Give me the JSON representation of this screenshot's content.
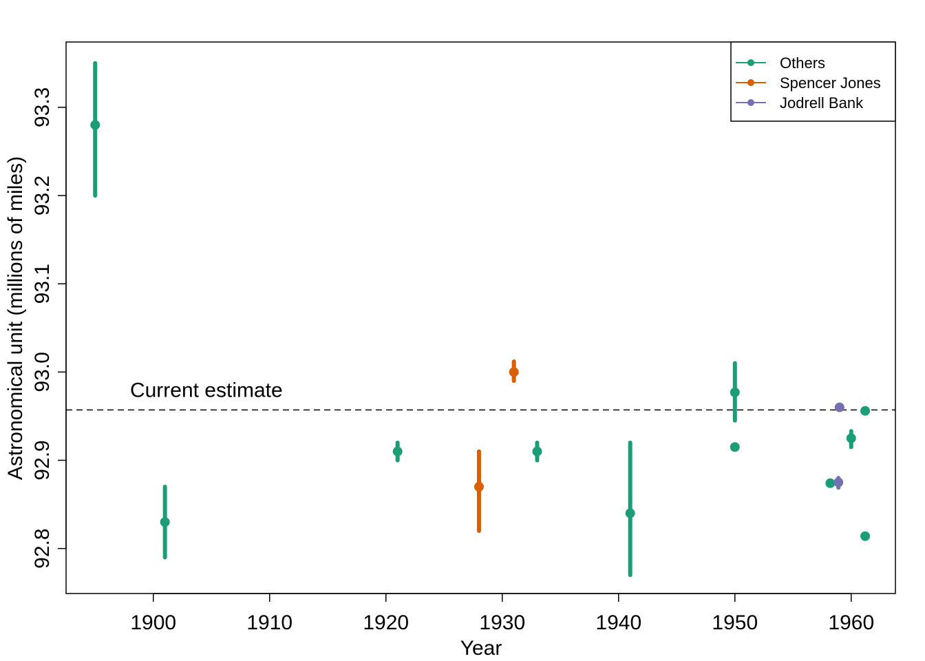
{
  "chart_data": {
    "type": "scatter",
    "title": "",
    "xlabel": "Year",
    "ylabel": "Astronomical unit (millions of miles)",
    "xlim": [
      1892.5,
      1963.8
    ],
    "ylim": [
      92.749,
      93.374
    ],
    "x_ticks": [
      1900,
      1910,
      1920,
      1930,
      1940,
      1950,
      1960
    ],
    "y_ticks": [
      92.8,
      92.9,
      93.0,
      93.1,
      93.2,
      93.3
    ],
    "x_tick_labels": [
      "1900",
      "1910",
      "1920",
      "1930",
      "1940",
      "1950",
      "1960"
    ],
    "y_tick_labels": [
      "92.8",
      "92.9",
      "93.0",
      "93.1",
      "93.2",
      "93.3"
    ],
    "grid": false,
    "legend_position": "top-right",
    "reference_line": {
      "y": 92.957,
      "style": "dashed",
      "label": "Current estimate"
    },
    "series": [
      {
        "name": "Others",
        "color": "#1B9E77",
        "points": [
          {
            "x": 1895,
            "y": 93.28,
            "lo": 93.2,
            "hi": 93.35
          },
          {
            "x": 1901,
            "y": 92.83,
            "lo": 92.79,
            "hi": 92.87
          },
          {
            "x": 1921,
            "y": 92.91,
            "lo": 92.9,
            "hi": 92.92
          },
          {
            "x": 1933,
            "y": 92.91,
            "lo": 92.9,
            "hi": 92.92
          },
          {
            "x": 1941,
            "y": 92.84,
            "lo": 92.77,
            "hi": 92.92
          },
          {
            "x": 1950,
            "y": 92.977,
            "lo": 92.945,
            "hi": 93.01
          },
          {
            "x": 1950,
            "y": 92.915,
            "lo": 92.915,
            "hi": 92.915
          },
          {
            "x": 1958.2,
            "y": 92.874,
            "lo": 92.874,
            "hi": 92.874
          },
          {
            "x": 1960,
            "y": 92.925,
            "lo": 92.915,
            "hi": 92.933
          },
          {
            "x": 1961.2,
            "y": 92.956,
            "lo": 92.956,
            "hi": 92.956
          },
          {
            "x": 1961.2,
            "y": 92.814,
            "lo": 92.814,
            "hi": 92.814
          }
        ]
      },
      {
        "name": "Spencer Jones",
        "color": "#D95F02",
        "points": [
          {
            "x": 1928,
            "y": 92.87,
            "lo": 92.82,
            "hi": 92.91
          },
          {
            "x": 1931,
            "y": 93.0,
            "lo": 92.99,
            "hi": 93.012
          }
        ]
      },
      {
        "name": "Jodrell Bank",
        "color": "#7570B3",
        "points": [
          {
            "x": 1958.9,
            "y": 92.875,
            "lo": 92.869,
            "hi": 92.88
          },
          {
            "x": 1959,
            "y": 92.96,
            "lo": 92.96,
            "hi": 92.96
          }
        ]
      }
    ]
  }
}
